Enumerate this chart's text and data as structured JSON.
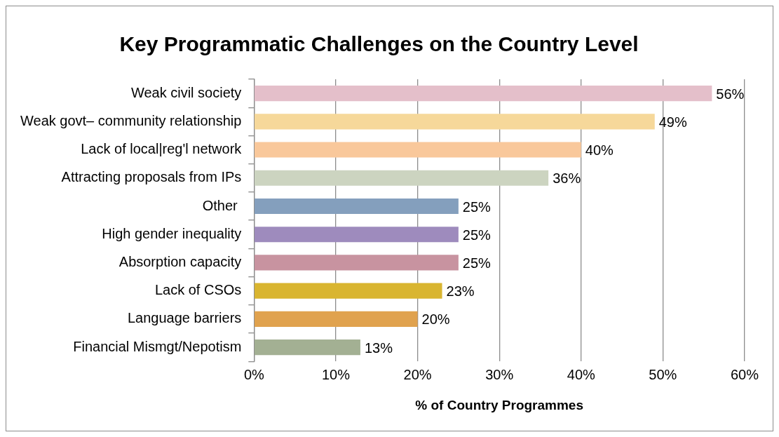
{
  "chart_data": {
    "type": "bar",
    "orientation": "horizontal",
    "title": "Key Programmatic Challenges on the Country Level",
    "xlabel": "% of Country Programmes",
    "categories": [
      "Weak civil society",
      "Weak govt– community relationship",
      "Lack of local|reg'l network",
      "Attracting proposals from IPs",
      "Other ",
      "High gender inequality",
      "Absorption capacity",
      "Lack of CSOs",
      "Language barriers",
      "Financial Mismgt/Nepotism"
    ],
    "values": [
      56,
      49,
      40,
      36,
      25,
      25,
      25,
      23,
      20,
      13
    ],
    "value_labels": [
      "56%",
      "49%",
      "40%",
      "36%",
      "25%",
      "25%",
      "25%",
      "23%",
      "20%",
      "13%"
    ],
    "colors": [
      "#e4bfca",
      "#f6d89a",
      "#f9c89b",
      "#ccd4c0",
      "#849fbd",
      "#9e8bbd",
      "#c893a0",
      "#d9b530",
      "#e0a24e",
      "#a3b093"
    ],
    "xlim": [
      0,
      60
    ],
    "xticks": [
      {
        "value": 0,
        "label": "0%"
      },
      {
        "value": 10,
        "label": "10%"
      },
      {
        "value": 20,
        "label": "20%"
      },
      {
        "value": 30,
        "label": "30%"
      },
      {
        "value": 40,
        "label": "40%"
      },
      {
        "value": 50,
        "label": "50%"
      },
      {
        "value": 60,
        "label": "60%"
      }
    ],
    "grid": "x",
    "legend": false
  }
}
